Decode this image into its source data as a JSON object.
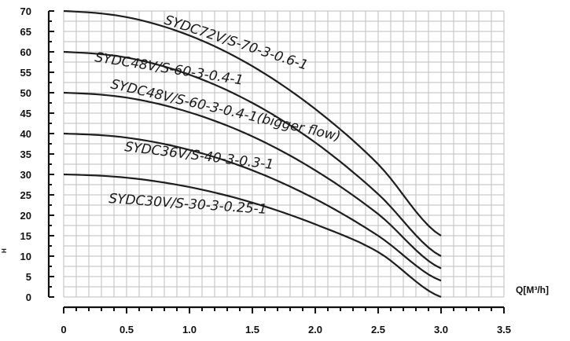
{
  "chart_data": {
    "type": "line",
    "title": "",
    "xlabel": "Q[M³/h]",
    "ylabel": "",
    "side_mark": "H",
    "xlim": [
      0,
      3.5
    ],
    "ylim": [
      0,
      70
    ],
    "xticks": [
      "0",
      "0.5",
      "1.0",
      "1.5",
      "2.0",
      "2.5",
      "3.0",
      "3.5"
    ],
    "yticks": [
      "0",
      "5",
      "10",
      "15",
      "20",
      "25",
      "30",
      "35",
      "40",
      "45",
      "50",
      "55",
      "60",
      "65",
      "70"
    ],
    "grid": true,
    "series": [
      {
        "name": "SYDC72V/S-70-3-0.6-1",
        "x": [
          0,
          0.5,
          1.0,
          1.5,
          2.0,
          2.5,
          3.0
        ],
        "values": [
          70,
          68.5,
          64,
          56.5,
          46,
          32.5,
          15
        ]
      },
      {
        "name": "SYDC48V/S-60-3-0.4-1",
        "x": [
          0,
          0.5,
          1.0,
          1.5,
          2.0,
          2.5,
          3.0
        ],
        "values": [
          60,
          58.6,
          54.4,
          47.5,
          37.8,
          25.2,
          10
        ]
      },
      {
        "name": "SYDC48V/S-60-3-0.4-1(bigger flow)",
        "x": [
          0,
          0.5,
          1.0,
          1.5,
          2.0,
          2.5,
          3.0
        ],
        "values": [
          50,
          48.8,
          45.2,
          39.3,
          31,
          20.3,
          7
        ]
      },
      {
        "name": "SYDC36V/S-40-3-0.3-1",
        "x": [
          0,
          0.5,
          1.0,
          1.5,
          2.0,
          2.5,
          3.0
        ],
        "values": [
          40,
          39,
          36,
          31,
          24,
          15,
          4
        ]
      },
      {
        "name": "SYDC30V/S-30-3-0.25-1",
        "x": [
          0,
          0.5,
          1.0,
          1.5,
          2.0,
          2.5,
          3.0
        ],
        "values": [
          30,
          29.2,
          26.9,
          23.1,
          17.8,
          11,
          0
        ]
      }
    ]
  }
}
